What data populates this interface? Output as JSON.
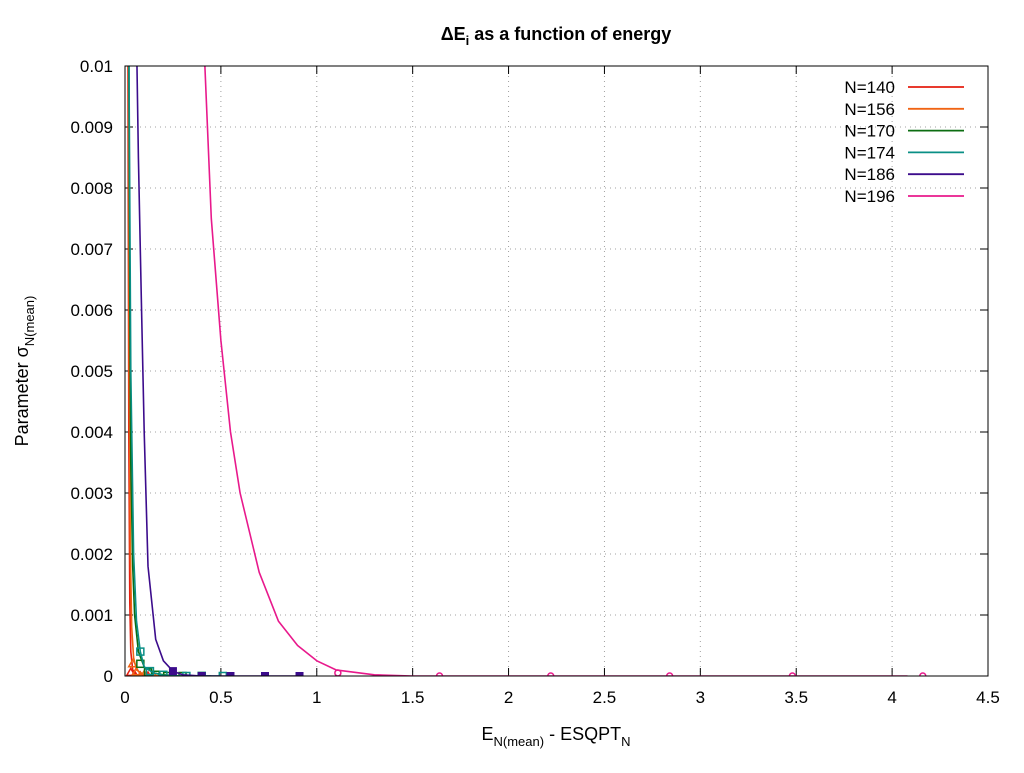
{
  "chart_data": {
    "type": "line",
    "title_main": "ΔE",
    "title_sub": "i",
    "title_rest": " as a function of energy",
    "xlabel_main": "E",
    "xlabel_sub1": "N(mean)",
    "xlabel_mid": " - ESQPT",
    "xlabel_sub2": "N",
    "ylabel_main": "Parameter σ",
    "ylabel_sub": "N(mean)",
    "xlim": [
      0,
      4.5
    ],
    "ylim": [
      0,
      0.01
    ],
    "grid": true,
    "legend_position": "top-right",
    "x_ticks": [
      0,
      0.5,
      1,
      1.5,
      2,
      2.5,
      3,
      3.5,
      4,
      4.5
    ],
    "x_tick_labels": [
      "0",
      "0.5",
      "1",
      "1.5",
      "2",
      "2.5",
      "3",
      "3.5",
      "4",
      "4.5"
    ],
    "y_ticks": [
      0,
      0.001,
      0.002,
      0.003,
      0.004,
      0.005,
      0.006,
      0.007,
      0.008,
      0.009,
      0.01
    ],
    "y_tick_labels": [
      "0",
      "0.001",
      "0.002",
      "0.003",
      "0.004",
      "0.005",
      "0.006",
      "0.007",
      "0.008",
      "0.009",
      "0.01"
    ],
    "series": [
      {
        "name": "N=140",
        "color": "#e51e10",
        "marker": "triangle",
        "curve": [
          [
            0.015,
            0.0105
          ],
          [
            0.02,
            0.004
          ],
          [
            0.025,
            0.0012
          ],
          [
            0.03,
            0.0004
          ],
          [
            0.04,
            0.0001
          ],
          [
            0.06,
            2e-05
          ],
          [
            0.1,
            0.0
          ],
          [
            0.2,
            0.0
          ]
        ],
        "points": [
          [
            0.03,
            6e-05
          ],
          [
            0.05,
            2e-05
          ],
          [
            0.08,
            0.0
          ],
          [
            0.12,
            0.0
          ]
        ]
      },
      {
        "name": "N=156",
        "color": "#f06414",
        "marker": "triangle",
        "curve": [
          [
            0.018,
            0.0105
          ],
          [
            0.022,
            0.005
          ],
          [
            0.028,
            0.002
          ],
          [
            0.035,
            0.0008
          ],
          [
            0.045,
            0.0003
          ],
          [
            0.06,
            0.0001
          ],
          [
            0.1,
            2e-05
          ],
          [
            0.2,
            0.0
          ],
          [
            0.3,
            0.0
          ]
        ],
        "points": [
          [
            0.04,
            0.0002
          ],
          [
            0.06,
            7e-05
          ],
          [
            0.1,
            2e-05
          ],
          [
            0.15,
            0.0
          ]
        ]
      },
      {
        "name": "N=170",
        "color": "#0c6d12",
        "marker": "square-open",
        "curve": [
          [
            0.02,
            0.0105
          ],
          [
            0.025,
            0.006
          ],
          [
            0.03,
            0.0035
          ],
          [
            0.04,
            0.0018
          ],
          [
            0.05,
            0.001
          ],
          [
            0.07,
            0.0004
          ],
          [
            0.1,
            0.00015
          ],
          [
            0.15,
            5e-05
          ],
          [
            0.2,
            2e-05
          ],
          [
            0.3,
            0.0
          ],
          [
            0.45,
            0.0
          ]
        ],
        "points": [
          [
            0.08,
            0.0002
          ],
          [
            0.12,
            6e-05
          ],
          [
            0.16,
            2e-05
          ],
          [
            0.22,
            0.0
          ],
          [
            0.3,
            0.0
          ],
          [
            0.4,
            0.0
          ]
        ]
      },
      {
        "name": "N=174",
        "color": "#0a8f86",
        "marker": "square-open",
        "curve": [
          [
            0.02,
            0.0105
          ],
          [
            0.03,
            0.005
          ],
          [
            0.045,
            0.002
          ],
          [
            0.06,
            0.0009
          ],
          [
            0.08,
            0.0004
          ],
          [
            0.1,
            0.00015
          ],
          [
            0.15,
            5e-05
          ],
          [
            0.2,
            1e-05
          ],
          [
            0.3,
            0.0
          ],
          [
            0.5,
            0.0
          ]
        ],
        "points": [
          [
            0.08,
            0.0004
          ],
          [
            0.13,
            8e-05
          ],
          [
            0.2,
            2e-05
          ],
          [
            0.32,
            0.0
          ],
          [
            0.4,
            0.0
          ],
          [
            0.51,
            0.0
          ]
        ]
      },
      {
        "name": "N=186",
        "color": "#3c0c8c",
        "marker": "square",
        "curve": [
          [
            0.06,
            0.0105
          ],
          [
            0.07,
            0.0085
          ],
          [
            0.085,
            0.0062
          ],
          [
            0.1,
            0.004
          ],
          [
            0.12,
            0.0018
          ],
          [
            0.16,
            0.0006
          ],
          [
            0.2,
            0.00025
          ],
          [
            0.25,
            8e-05
          ],
          [
            0.3,
            2e-05
          ],
          [
            0.4,
            0.0
          ],
          [
            0.55,
            0.0
          ],
          [
            0.73,
            0.0
          ],
          [
            0.91,
            0.0
          ]
        ],
        "points": [
          [
            0.25,
            8e-05
          ],
          [
            0.4,
            0.0
          ],
          [
            0.55,
            0.0
          ],
          [
            0.73,
            0.0
          ],
          [
            0.91,
            0.0
          ]
        ]
      },
      {
        "name": "N=196",
        "color": "#e8198c",
        "marker": "circle-open",
        "curve": [
          [
            0.41,
            0.0105
          ],
          [
            0.45,
            0.0075
          ],
          [
            0.5,
            0.0055
          ],
          [
            0.55,
            0.004
          ],
          [
            0.6,
            0.003
          ],
          [
            0.7,
            0.0017
          ],
          [
            0.8,
            0.0009
          ],
          [
            0.9,
            0.0005
          ],
          [
            1.0,
            0.00025
          ],
          [
            1.1,
            0.0001
          ],
          [
            1.3,
            2e-05
          ],
          [
            1.5,
            0.0
          ],
          [
            2.0,
            0.0
          ],
          [
            3.0,
            0.0
          ],
          [
            4.08,
            0.0
          ]
        ],
        "points": [
          [
            1.11,
            5e-05
          ],
          [
            1.64,
            0.0
          ],
          [
            2.22,
            0.0
          ],
          [
            2.84,
            0.0
          ],
          [
            3.48,
            0.0
          ],
          [
            4.16,
            0.0
          ]
        ]
      }
    ]
  }
}
